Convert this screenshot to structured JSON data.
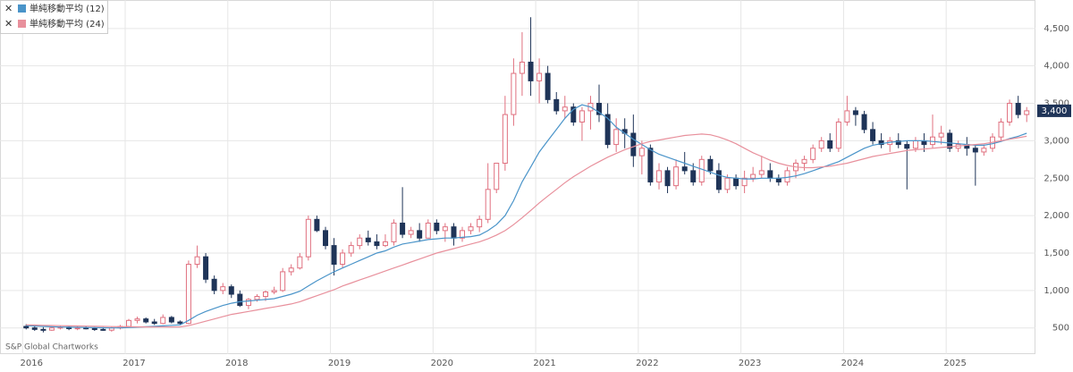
{
  "chart_data": {
    "type": "candlestick",
    "source": "S&P Global Chartworks",
    "x": [
      2016,
      2016.083,
      2016.167,
      2016.25,
      2016.333,
      2016.417,
      2016.5,
      2016.583,
      2016.667,
      2016.75,
      2016.833,
      2016.917,
      2017,
      2017.083,
      2017.167,
      2017.25,
      2017.333,
      2017.417,
      2017.5,
      2017.583,
      2017.667,
      2017.75,
      2017.833,
      2017.917,
      2018,
      2018.083,
      2018.167,
      2018.25,
      2018.333,
      2018.417,
      2018.5,
      2018.583,
      2018.667,
      2018.75,
      2018.833,
      2018.917,
      2019,
      2019.083,
      2019.167,
      2019.25,
      2019.333,
      2019.417,
      2019.5,
      2019.583,
      2019.667,
      2019.75,
      2019.833,
      2019.917,
      2020,
      2020.083,
      2020.167,
      2020.25,
      2020.333,
      2020.417,
      2020.5,
      2020.583,
      2020.667,
      2020.75,
      2020.833,
      2020.917,
      2021,
      2021.083,
      2021.167,
      2021.25,
      2021.333,
      2021.417,
      2021.5,
      2021.583,
      2021.667,
      2021.75,
      2021.833,
      2021.917,
      2022,
      2022.083,
      2022.167,
      2022.25,
      2022.333,
      2022.417,
      2022.5,
      2022.583,
      2022.667,
      2022.75,
      2022.833,
      2022.917,
      2023,
      2023.083,
      2023.167,
      2023.25,
      2023.333,
      2023.417,
      2023.5,
      2023.583,
      2023.667,
      2023.75,
      2023.833,
      2023.917,
      2024,
      2024.083,
      2024.167,
      2024.25,
      2024.333,
      2024.417,
      2024.5,
      2024.583,
      2024.667,
      2024.75,
      2024.833,
      2024.917,
      2025,
      2025.083,
      2025.167,
      2025.25,
      2025.333,
      2025.417,
      2025.5,
      2025.583,
      2025.667,
      2025.75
    ],
    "open": [
      520,
      500,
      480,
      470,
      500,
      510,
      490,
      500,
      490,
      480,
      470,
      500,
      520,
      600,
      620,
      580,
      560,
      640,
      580,
      560,
      1350,
      1450,
      1150,
      1000,
      1050,
      950,
      800,
      880,
      920,
      980,
      1000,
      1250,
      1300,
      1450,
      1950,
      1800,
      1600,
      1350,
      1500,
      1600,
      1700,
      1650,
      1600,
      1650,
      1900,
      1750,
      1800,
      1700,
      1900,
      1800,
      1850,
      1700,
      1800,
      1850,
      1950,
      2350,
      2700,
      3350,
      3900,
      4050,
      3800,
      3900,
      3550,
      3400,
      3450,
      3250,
      3400,
      3500,
      3350,
      2950,
      3150,
      3100,
      2800,
      2900,
      2450,
      2600,
      2400,
      2650,
      2600,
      2450,
      2750,
      2600,
      2350,
      2500,
      2400,
      2500,
      2550,
      2600,
      2500,
      2450,
      2600,
      2700,
      2750,
      2900,
      3000,
      2900,
      3250,
      3400,
      3350,
      3150,
      3000,
      2950,
      3000,
      2950,
      2900,
      3000,
      2950,
      3050,
      3100,
      2900,
      2950,
      2900,
      2850,
      2900,
      3050,
      3250,
      3500,
      3350
    ],
    "high": [
      550,
      520,
      510,
      520,
      530,
      520,
      520,
      520,
      510,
      510,
      520,
      540,
      620,
      650,
      640,
      620,
      680,
      660,
      600,
      1400,
      1600,
      1500,
      1200,
      1100,
      1080,
      1000,
      900,
      950,
      1000,
      1050,
      1300,
      1350,
      1500,
      2000,
      2000,
      1850,
      1700,
      1550,
      1650,
      1750,
      1800,
      1750,
      1750,
      1950,
      2380,
      1850,
      1900,
      1950,
      1950,
      1900,
      1900,
      1850,
      1900,
      2000,
      2700,
      2700,
      3600,
      4100,
      4450,
      4650,
      4100,
      4000,
      3650,
      3600,
      3500,
      3450,
      3600,
      3750,
      3500,
      3300,
      3300,
      3350,
      3000,
      2950,
      2700,
      2650,
      2750,
      2850,
      2700,
      2800,
      2800,
      2700,
      2550,
      2550,
      2600,
      2650,
      2800,
      2700,
      2550,
      2650,
      2750,
      2800,
      2950,
      3050,
      3100,
      3300,
      3600,
      3450,
      3400,
      3250,
      3100,
      3050,
      3100,
      3000,
      3050,
      3100,
      3350,
      3200,
      3150,
      3000,
      3050,
      2950,
      2950,
      3100,
      3300,
      3550,
      3600,
      3450
    ],
    "low": [
      480,
      460,
      440,
      460,
      480,
      470,
      470,
      480,
      460,
      460,
      450,
      480,
      510,
      560,
      560,
      540,
      550,
      560,
      540,
      550,
      1300,
      1100,
      950,
      950,
      900,
      780,
      750,
      850,
      860,
      950,
      980,
      1200,
      1280,
      1400,
      1780,
      1550,
      1200,
      1300,
      1450,
      1550,
      1600,
      1550,
      1580,
      1600,
      1700,
      1700,
      1650,
      1700,
      1750,
      1650,
      1600,
      1650,
      1750,
      1780,
      1900,
      2300,
      2600,
      3200,
      3600,
      3600,
      3500,
      3500,
      3350,
      3300,
      3200,
      3000,
      3150,
      3250,
      2900,
      2850,
      2900,
      2650,
      2550,
      2400,
      2350,
      2300,
      2350,
      2550,
      2400,
      2400,
      2550,
      2300,
      2300,
      2350,
      2300,
      2450,
      2500,
      2450,
      2400,
      2400,
      2500,
      2600,
      2700,
      2850,
      2850,
      2850,
      3200,
      3200,
      3100,
      2950,
      2900,
      2850,
      2900,
      2350,
      2850,
      2850,
      2900,
      2950,
      2850,
      2850,
      2800,
      2400,
      2800,
      2850,
      3000,
      3200,
      3300,
      3250
    ],
    "close": [
      500,
      480,
      470,
      500,
      510,
      490,
      500,
      490,
      480,
      470,
      500,
      520,
      600,
      620,
      580,
      560,
      640,
      580,
      560,
      1350,
      1450,
      1150,
      1000,
      1050,
      950,
      800,
      880,
      920,
      980,
      1000,
      1250,
      1300,
      1450,
      1950,
      1800,
      1600,
      1350,
      1500,
      1600,
      1700,
      1650,
      1600,
      1650,
      1900,
      1750,
      1800,
      1700,
      1900,
      1800,
      1850,
      1700,
      1800,
      1850,
      1950,
      2350,
      2700,
      3350,
      3900,
      4050,
      3800,
      3900,
      3550,
      3400,
      3450,
      3250,
      3400,
      3500,
      3350,
      2950,
      3150,
      3100,
      2800,
      2900,
      2450,
      2600,
      2400,
      2650,
      2600,
      2450,
      2750,
      2600,
      2350,
      2500,
      2400,
      2500,
      2550,
      2600,
      2500,
      2450,
      2600,
      2700,
      2750,
      2900,
      3000,
      2900,
      3250,
      3400,
      3350,
      3150,
      3000,
      2950,
      3000,
      2950,
      2900,
      3000,
      2950,
      3050,
      3100,
      2900,
      2950,
      2900,
      2850,
      2900,
      3050,
      3250,
      3500,
      3350,
      3400
    ],
    "last_value_label": "3,400",
    "up_color": "#e0707f",
    "down_color": "#1f3458",
    "series": [
      {
        "name": "単純移動平均 (12)",
        "color": "#4a94c9",
        "values": [
          530,
          525,
          520,
          515,
          512,
          510,
          508,
          506,
          504,
          502,
          500,
          500,
          505,
          510,
          515,
          520,
          528,
          535,
          540,
          600,
          670,
          720,
          760,
          800,
          830,
          850,
          860,
          870,
          880,
          890,
          920,
          950,
          990,
          1060,
          1130,
          1190,
          1250,
          1300,
          1350,
          1400,
          1450,
          1500,
          1530,
          1580,
          1620,
          1640,
          1660,
          1680,
          1690,
          1700,
          1700,
          1710,
          1720,
          1740,
          1800,
          1880,
          2000,
          2200,
          2450,
          2650,
          2850,
          3000,
          3150,
          3300,
          3420,
          3480,
          3450,
          3380,
          3300,
          3180,
          3100,
          3020,
          2950,
          2880,
          2820,
          2780,
          2740,
          2700,
          2660,
          2620,
          2580,
          2540,
          2510,
          2500,
          2490,
          2490,
          2500,
          2500,
          2500,
          2510,
          2530,
          2560,
          2600,
          2640,
          2680,
          2720,
          2780,
          2840,
          2900,
          2940,
          2960,
          2980,
          2990,
          3000,
          3000,
          3000,
          2990,
          2980,
          2970,
          2960,
          2950,
          2940,
          2940,
          2960,
          2990,
          3030,
          3060,
          3100
        ]
      },
      {
        "name": "単純移動平均 (24)",
        "color": "#e8909c",
        "values": [
          540,
          538,
          535,
          532,
          530,
          528,
          526,
          524,
          522,
          520,
          518,
          516,
          515,
          514,
          513,
          512,
          512,
          513,
          514,
          530,
          560,
          590,
          620,
          650,
          680,
          700,
          720,
          740,
          760,
          780,
          800,
          820,
          850,
          890,
          930,
          970,
          1010,
          1060,
          1100,
          1140,
          1180,
          1220,
          1260,
          1300,
          1340,
          1380,
          1420,
          1460,
          1500,
          1530,
          1560,
          1590,
          1620,
          1650,
          1690,
          1740,
          1800,
          1880,
          1970,
          2070,
          2170,
          2260,
          2350,
          2440,
          2520,
          2590,
          2660,
          2720,
          2780,
          2830,
          2880,
          2920,
          2960,
          2990,
          3010,
          3030,
          3050,
          3070,
          3080,
          3090,
          3080,
          3050,
          3010,
          2960,
          2900,
          2840,
          2790,
          2740,
          2700,
          2670,
          2650,
          2640,
          2640,
          2650,
          2660,
          2680,
          2700,
          2730,
          2760,
          2790,
          2810,
          2830,
          2850,
          2870,
          2880,
          2890,
          2900,
          2910,
          2920,
          2930,
          2940,
          2950,
          2960,
          2980,
          3000,
          3020,
          3040,
          3060
        ]
      }
    ],
    "xlim": [
      2015.78,
      2025.87
    ],
    "xticks": [
      2016,
      2017,
      2018,
      2019,
      2020,
      2021,
      2022,
      2023,
      2024,
      2025
    ],
    "ylim": [
      150,
      4880
    ],
    "yticks": [
      500,
      {
        "value": 1000,
        "label": "1,000"
      },
      {
        "value": 1500,
        "label": "1,500"
      },
      {
        "value": 2000,
        "label": "2,000"
      },
      {
        "value": 2500,
        "label": "2,500"
      },
      {
        "value": 3000,
        "label": "3,000"
      },
      {
        "value": 3500,
        "label": "3,500"
      },
      {
        "value": 4000,
        "label": "4,000"
      },
      {
        "value": 4500,
        "label": "4,500"
      }
    ],
    "grid": true
  }
}
